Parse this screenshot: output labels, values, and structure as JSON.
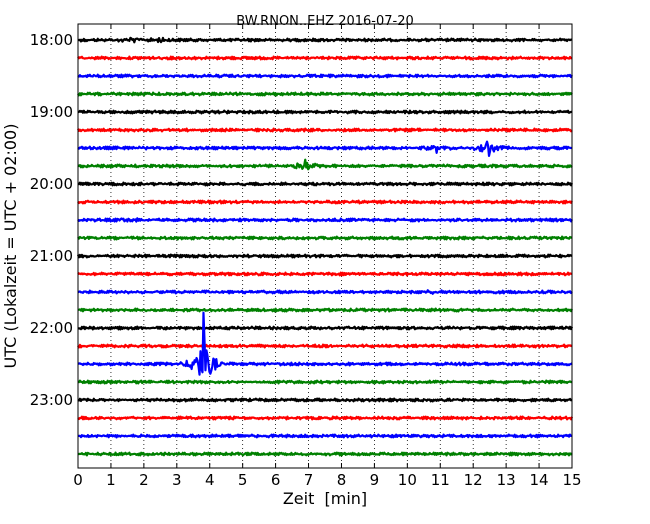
{
  "chart_data": {
    "type": "line",
    "title": "BW.RNON..EHZ 2016-07-20",
    "xlabel": "Zeit  [min]",
    "ylabel": "UTC (Lokalzeit = UTC + 02:00)",
    "xlim": [
      0,
      15
    ],
    "x_ticks": [
      0,
      1,
      2,
      3,
      4,
      5,
      6,
      7,
      8,
      9,
      10,
      11,
      12,
      13,
      14,
      15
    ],
    "x_grid": "dotted",
    "y_tick_labels": [
      "18:00",
      "19:00",
      "20:00",
      "21:00",
      "22:00",
      "23:00"
    ],
    "trace_interval_minutes": 15,
    "colors": [
      "#000000",
      "#ff0000",
      "#0000ff",
      "#008000"
    ],
    "traces": [
      {
        "start": "18:00",
        "events": [
          {
            "t": 1.6,
            "amp": 0.35
          },
          {
            "t": 2.5,
            "amp": 0.2
          }
        ]
      },
      {
        "start": "18:15",
        "events": []
      },
      {
        "start": "18:30",
        "events": []
      },
      {
        "start": "18:45",
        "events": []
      },
      {
        "start": "19:00",
        "events": []
      },
      {
        "start": "19:15",
        "events": []
      },
      {
        "start": "19:30",
        "events": [
          {
            "t": 10.9,
            "amp": 0.3
          },
          {
            "t": 12.45,
            "amp": 0.8
          }
        ]
      },
      {
        "start": "19:45",
        "events": [
          {
            "t": 6.9,
            "amp": 0.6
          }
        ]
      },
      {
        "start": "20:00",
        "events": []
      },
      {
        "start": "20:15",
        "events": []
      },
      {
        "start": "20:30",
        "events": [
          {
            "t": 1.5,
            "amp": 0.2
          }
        ]
      },
      {
        "start": "20:45",
        "events": []
      },
      {
        "start": "21:00",
        "events": []
      },
      {
        "start": "21:15",
        "events": []
      },
      {
        "start": "21:30",
        "events": [
          {
            "t": 10.7,
            "amp": 0.2
          }
        ]
      },
      {
        "start": "21:45",
        "events": []
      },
      {
        "start": "22:00",
        "events": []
      },
      {
        "start": "22:15",
        "events": []
      },
      {
        "start": "22:30",
        "events": [
          {
            "t": 3.8,
            "amp": 4.0
          }
        ]
      },
      {
        "start": "22:45",
        "events": []
      },
      {
        "start": "23:00",
        "events": []
      },
      {
        "start": "23:15",
        "events": []
      },
      {
        "start": "23:30",
        "events": []
      },
      {
        "start": "23:45",
        "events": []
      }
    ]
  }
}
